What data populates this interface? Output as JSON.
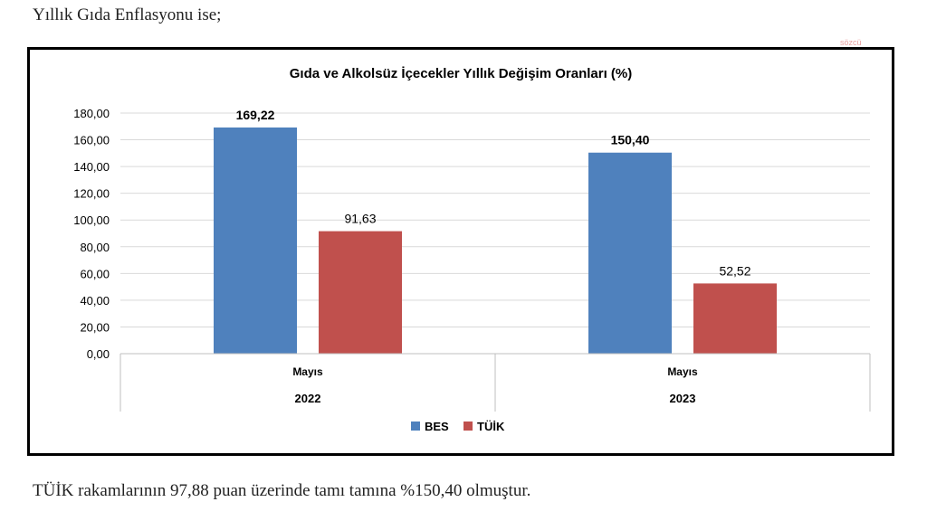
{
  "intro_text": "Yıllık Gıda Enflasyonu ise;",
  "outro_text": "TÜİK rakamlarının 97,88 puan üzerinde tamı tamına %150,40 olmuştur.",
  "watermark": "sözcü",
  "chart_data": {
    "type": "bar",
    "title": "Gıda ve Alkolsüz İçecekler Yıllık Değişim Oranları (%)",
    "categories": [
      {
        "month": "Mayıs",
        "year": "2022"
      },
      {
        "month": "Mayıs",
        "year": "2023"
      }
    ],
    "series": [
      {
        "name": "BES",
        "color": "#4f81bd",
        "values": [
          169.22,
          150.4
        ],
        "labels": [
          "169,22",
          "150,40"
        ]
      },
      {
        "name": "TÜİK",
        "color": "#c0504d",
        "values": [
          91.63,
          52.52
        ],
        "labels": [
          "91,63",
          "52,52"
        ]
      }
    ],
    "ylim": [
      0,
      180
    ],
    "yticks": [
      "0,00",
      "20,00",
      "40,00",
      "60,00",
      "80,00",
      "100,00",
      "120,00",
      "140,00",
      "160,00",
      "180,00"
    ],
    "grid": true,
    "legend_position": "bottom-center"
  }
}
